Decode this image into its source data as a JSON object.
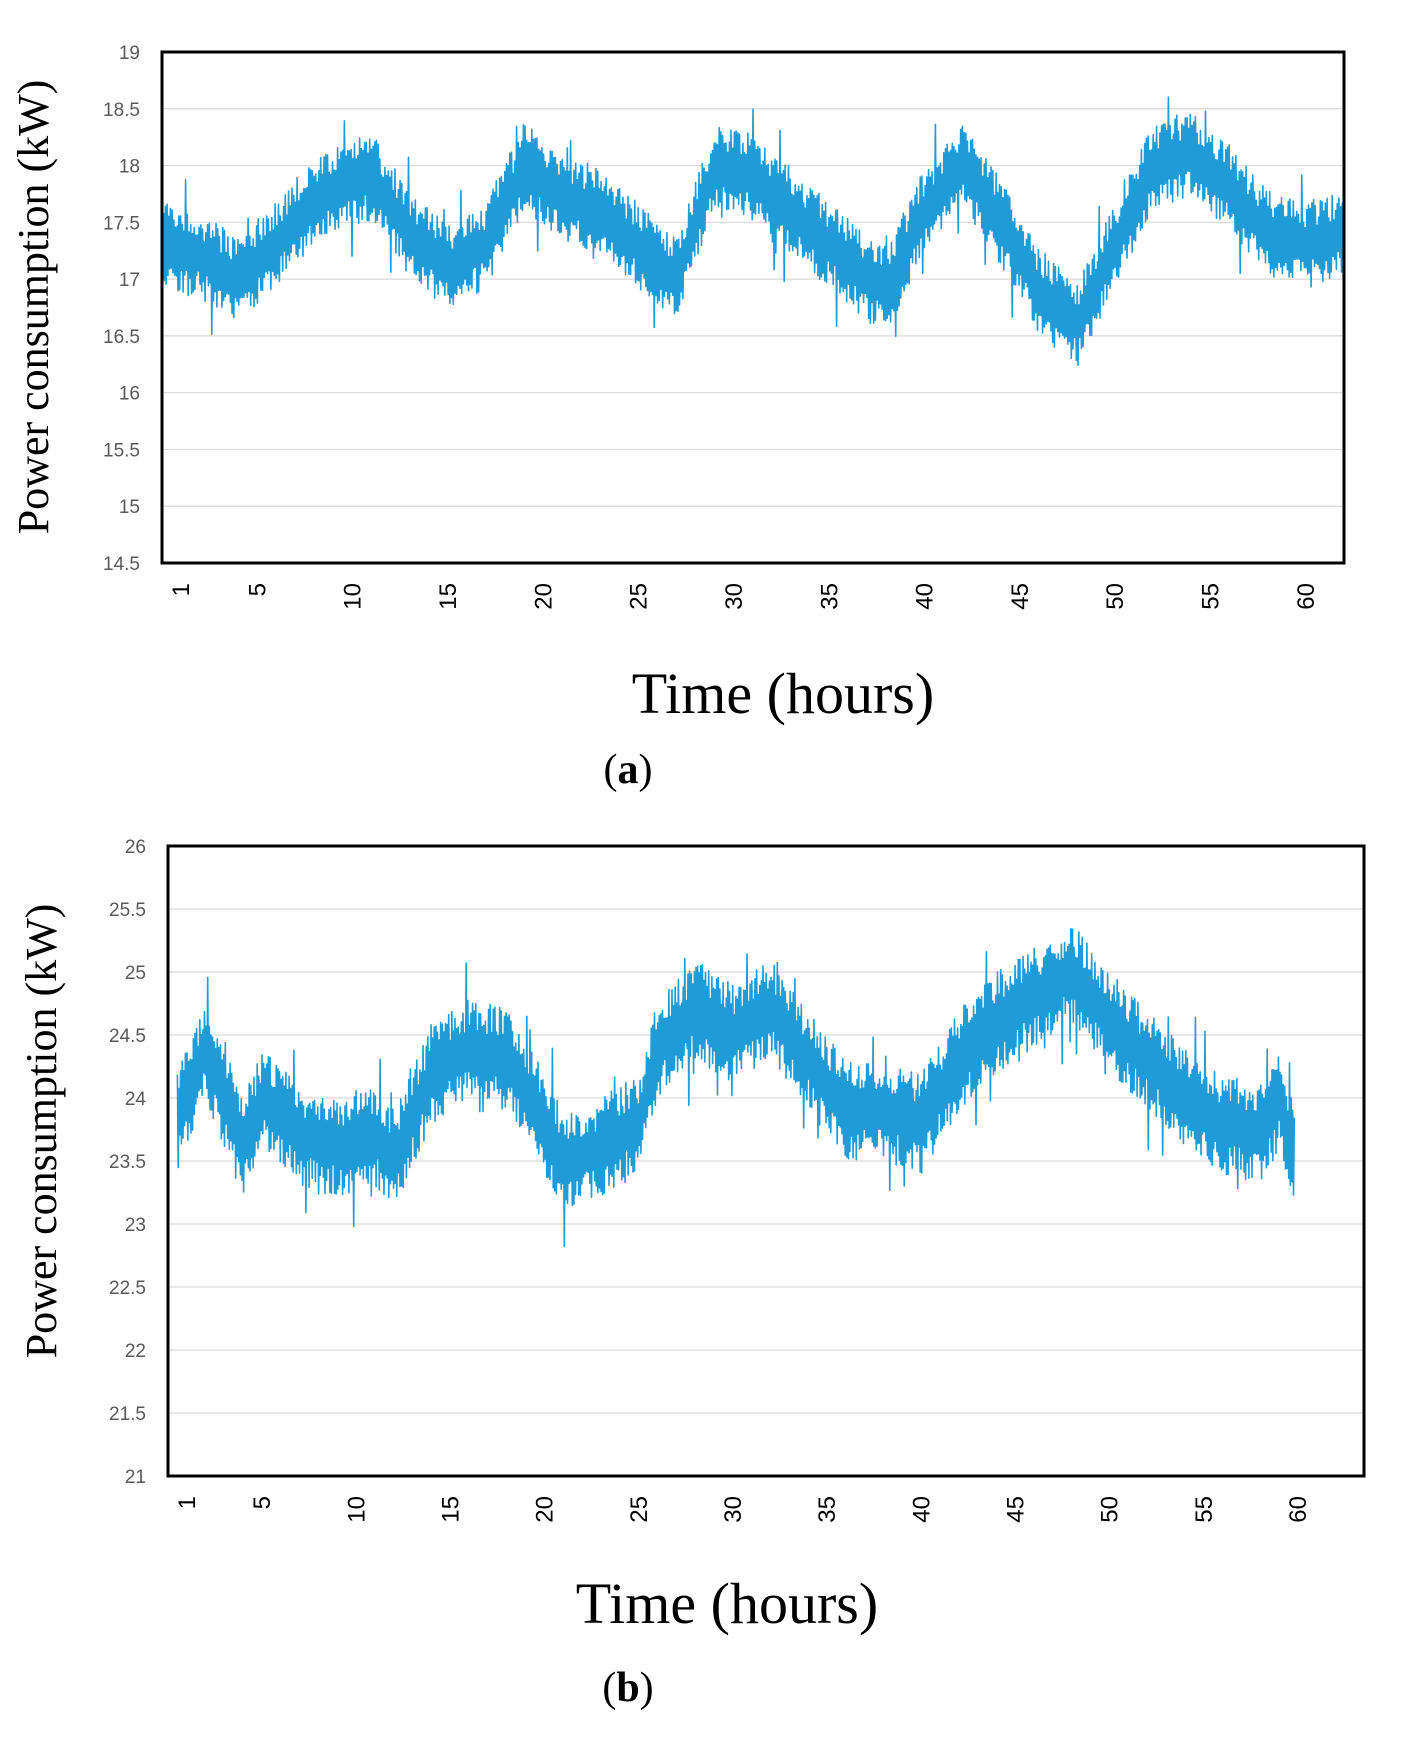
{
  "chart_data": [
    {
      "type": "line",
      "panel_label": "a",
      "xlabel": "Time (hours)",
      "ylabel": "Power consumption (kW)",
      "ylim": [
        14.5,
        19
      ],
      "yticks": [
        "14.5",
        "15",
        "15.5",
        "16",
        "16.5",
        "17",
        "17.5",
        "18",
        "18.5",
        "19"
      ],
      "xlim": [
        0,
        62
      ],
      "xticks": [
        1,
        5,
        10,
        15,
        20,
        25,
        30,
        35,
        40,
        45,
        50,
        55,
        60
      ],
      "grid": true,
      "line_color": "#1f9bd7",
      "series": [
        {
          "name": "Power consumption",
          "x": [
            0,
            2,
            3,
            4,
            6,
            8,
            10,
            11,
            13,
            15,
            17,
            19,
            21,
            23,
            25,
            27,
            29,
            31,
            33,
            35,
            37,
            38,
            40,
            42,
            44,
            46,
            48,
            50,
            52,
            54,
            56,
            58,
            60,
            62
          ],
          "center": [
            17.3,
            17.2,
            17.1,
            17.0,
            17.3,
            17.7,
            17.85,
            17.9,
            17.4,
            17.1,
            17.3,
            18.0,
            17.7,
            17.6,
            17.3,
            17.0,
            18.0,
            17.9,
            17.6,
            17.3,
            17.0,
            16.9,
            17.6,
            18.0,
            17.5,
            16.9,
            16.6,
            17.3,
            18.0,
            18.1,
            17.8,
            17.4,
            17.3,
            17.4
          ],
          "spread": 0.38
        }
      ]
    },
    {
      "type": "line",
      "panel_label": "b",
      "xlabel": "Time (hours)",
      "ylabel": "Power consumption (kW)",
      "ylim": [
        21,
        26
      ],
      "yticks": [
        "21",
        "21.5",
        "22",
        "22.5",
        "23",
        "23.5",
        "24",
        "24.5",
        "25",
        "25.5",
        "26"
      ],
      "xlim": [
        0,
        63.5
      ],
      "xticks": [
        1,
        5,
        10,
        15,
        20,
        25,
        30,
        35,
        40,
        45,
        50,
        55,
        60
      ],
      "grid": true,
      "line_color": "#1f9bd7",
      "series": [
        {
          "name": "Power consumption",
          "x": [
            0.5,
            2,
            3,
            4,
            5,
            7,
            9,
            11,
            12,
            14,
            16,
            18,
            20,
            21,
            23,
            25,
            26,
            28,
            30,
            32,
            34,
            36,
            38,
            40,
            42,
            44,
            46,
            48,
            50,
            52,
            54,
            56,
            58,
            59,
            59.8
          ],
          "center": [
            23.8,
            24.4,
            24.0,
            23.6,
            24.0,
            23.7,
            23.6,
            23.7,
            23.5,
            24.2,
            24.4,
            24.3,
            23.8,
            23.5,
            23.6,
            23.8,
            24.4,
            24.7,
            24.5,
            24.7,
            24.3,
            23.9,
            23.9,
            23.8,
            24.3,
            24.6,
            24.8,
            25.0,
            24.6,
            24.3,
            24.0,
            23.8,
            23.7,
            24.0,
            23.5
          ],
          "spread": 0.4
        }
      ]
    }
  ]
}
